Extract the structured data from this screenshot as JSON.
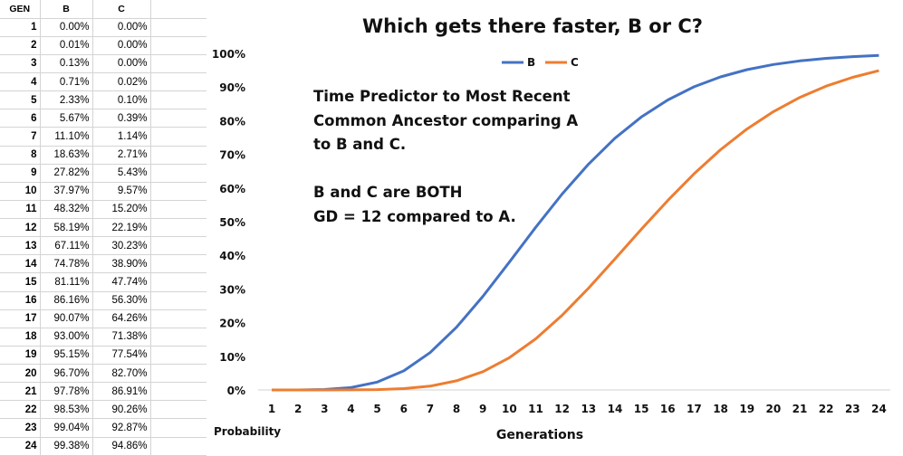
{
  "sheet": {
    "headers": [
      "GEN",
      "B",
      "C"
    ],
    "rows": [
      [
        "1",
        "0.00%",
        "0.00%"
      ],
      [
        "2",
        "0.01%",
        "0.00%"
      ],
      [
        "3",
        "0.13%",
        "0.00%"
      ],
      [
        "4",
        "0.71%",
        "0.02%"
      ],
      [
        "5",
        "2.33%",
        "0.10%"
      ],
      [
        "6",
        "5.67%",
        "0.39%"
      ],
      [
        "7",
        "11.10%",
        "1.14%"
      ],
      [
        "8",
        "18.63%",
        "2.71%"
      ],
      [
        "9",
        "27.82%",
        "5.43%"
      ],
      [
        "10",
        "37.97%",
        "9.57%"
      ],
      [
        "11",
        "48.32%",
        "15.20%"
      ],
      [
        "12",
        "58.19%",
        "22.19%"
      ],
      [
        "13",
        "67.11%",
        "30.23%"
      ],
      [
        "14",
        "74.78%",
        "38.90%"
      ],
      [
        "15",
        "81.11%",
        "47.74%"
      ],
      [
        "16",
        "86.16%",
        "56.30%"
      ],
      [
        "17",
        "90.07%",
        "64.26%"
      ],
      [
        "18",
        "93.00%",
        "71.38%"
      ],
      [
        "19",
        "95.15%",
        "77.54%"
      ],
      [
        "20",
        "96.70%",
        "82.70%"
      ],
      [
        "21",
        "97.78%",
        "86.91%"
      ],
      [
        "22",
        "98.53%",
        "90.26%"
      ],
      [
        "23",
        "99.04%",
        "92.87%"
      ],
      [
        "24",
        "99.38%",
        "94.86%"
      ]
    ]
  },
  "annotation": {
    "line1": "Time Predictor to Most Recent",
    "line2": "Common Ancestor comparing A",
    "line3": "to B and C.",
    "line4": "B and C are BOTH",
    "line5": "GD = 12 compared to A."
  },
  "chart_data": {
    "type": "line",
    "title": "Which gets there faster, B or C?",
    "xlabel": "Generations",
    "ylabel": "Probability",
    "x": [
      1,
      2,
      3,
      4,
      5,
      6,
      7,
      8,
      9,
      10,
      11,
      12,
      13,
      14,
      15,
      16,
      17,
      18,
      19,
      20,
      21,
      22,
      23,
      24
    ],
    "yticks": [
      "0%",
      "10%",
      "20%",
      "30%",
      "40%",
      "50%",
      "60%",
      "70%",
      "80%",
      "90%",
      "100%"
    ],
    "ylim": [
      0,
      1
    ],
    "grid": false,
    "legend_position": "top",
    "series": [
      {
        "name": "B",
        "color": "#4472C4",
        "values": [
          0.0,
          0.0001,
          0.0013,
          0.0071,
          0.0233,
          0.0567,
          0.111,
          0.1863,
          0.2782,
          0.3797,
          0.4832,
          0.5819,
          0.6711,
          0.7478,
          0.8111,
          0.8616,
          0.9007,
          0.93,
          0.9515,
          0.967,
          0.9778,
          0.9853,
          0.9904,
          0.9938
        ]
      },
      {
        "name": "C",
        "color": "#ED7D31",
        "values": [
          0.0,
          0.0,
          0.0,
          0.0002,
          0.001,
          0.0039,
          0.0114,
          0.0271,
          0.0543,
          0.0957,
          0.152,
          0.2219,
          0.3023,
          0.389,
          0.4774,
          0.563,
          0.6426,
          0.7138,
          0.7754,
          0.827,
          0.8691,
          0.9026,
          0.9287,
          0.9486
        ]
      }
    ]
  }
}
